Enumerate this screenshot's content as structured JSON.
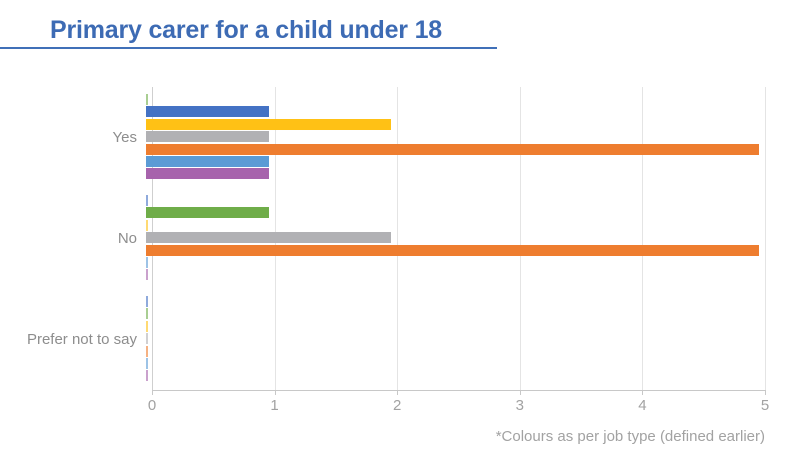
{
  "header": {
    "title": "Primary carer for a child under 18",
    "title_color": "#3d6bb4",
    "underline_color": "#4070b8"
  },
  "chart_data": {
    "type": "bar",
    "orientation": "horizontal",
    "title": "Primary carer for a child under 18",
    "categories": [
      "Yes",
      "No",
      "Prefer not to say"
    ],
    "xlabel": "",
    "ylabel": "",
    "xlim": [
      0,
      5
    ],
    "x_ticks": [
      "0",
      "1",
      "2",
      "3",
      "4",
      "5"
    ],
    "grid": "vertical-on",
    "legend": "none",
    "footnote": "*Colours as per job type (defined earlier)",
    "palette": {
      "blue": "#4472c4",
      "green": "#6fad49",
      "gold": "#ffc115",
      "gray": "#b1b1b4",
      "orange": "#ee7d2f",
      "lightblue": "#5b9bd5",
      "purple": "#a763ac"
    },
    "series": [
      {
        "name": "job-type-blue",
        "color": "blue",
        "values": [
          1,
          0,
          0
        ]
      },
      {
        "name": "job-type-green",
        "color": "green",
        "values": [
          0,
          1,
          0
        ]
      },
      {
        "name": "job-type-gold",
        "color": "gold",
        "values": [
          2,
          0,
          0
        ]
      },
      {
        "name": "job-type-gray",
        "color": "gray",
        "values": [
          1,
          2,
          0
        ]
      },
      {
        "name": "job-type-orange",
        "color": "orange",
        "values": [
          5,
          5,
          0
        ]
      },
      {
        "name": "job-type-lightblue",
        "color": "lightblue",
        "values": [
          1,
          0,
          0
        ]
      },
      {
        "name": "job-type-purple",
        "color": "purple",
        "values": [
          1,
          0,
          0
        ]
      }
    ],
    "groups": [
      {
        "label": "Yes",
        "bars": [
          {
            "color": "green",
            "value": 0
          },
          {
            "color": "blue",
            "value": 1
          },
          {
            "color": "gold",
            "value": 2
          },
          {
            "color": "gray",
            "value": 1
          },
          {
            "color": "orange",
            "value": 5
          },
          {
            "color": "lightblue",
            "value": 1
          },
          {
            "color": "purple",
            "value": 1
          }
        ]
      },
      {
        "label": "No",
        "bars": [
          {
            "color": "blue",
            "value": 0
          },
          {
            "color": "green",
            "value": 1
          },
          {
            "color": "gold",
            "value": 0
          },
          {
            "color": "gray",
            "value": 2
          },
          {
            "color": "orange",
            "value": 5
          },
          {
            "color": "lightblue",
            "value": 0
          },
          {
            "color": "purple",
            "value": 0
          }
        ]
      },
      {
        "label": "Prefer not to say",
        "bars": [
          {
            "color": "blue",
            "value": 0
          },
          {
            "color": "green",
            "value": 0
          },
          {
            "color": "gold",
            "value": 0
          },
          {
            "color": "gray",
            "value": 0
          },
          {
            "color": "orange",
            "value": 0
          },
          {
            "color": "lightblue",
            "value": 0
          },
          {
            "color": "purple",
            "value": 0
          }
        ]
      }
    ]
  }
}
